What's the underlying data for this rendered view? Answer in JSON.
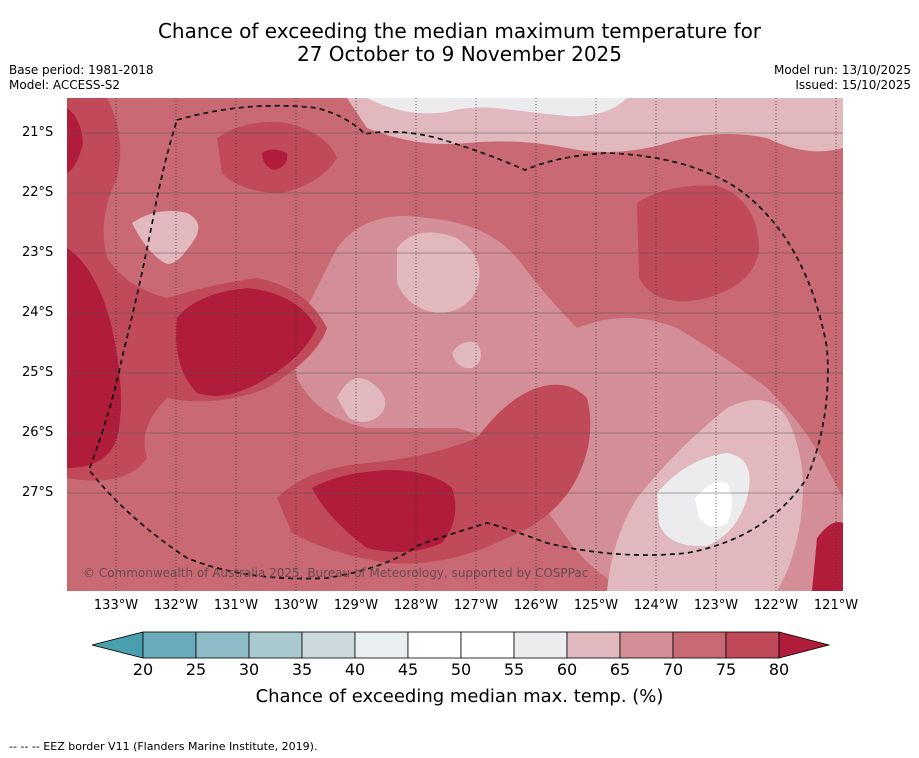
{
  "title": {
    "line1": "Chance of exceeding the median maximum temperature for",
    "line2": "27 October to 9 November 2025"
  },
  "meta": {
    "base_period": "Base period: 1981-2018",
    "model": "Model: ACCESS-S2",
    "model_run": "Model run: 13/10/2025",
    "issued": "Issued: 15/10/2025"
  },
  "map": {
    "credit": "© Commonwealth of Australia 2025, Bureau of Meteorology, supported by COSPPac",
    "lat_labels": [
      "21°S",
      "22°S",
      "23°S",
      "24°S",
      "25°S",
      "26°S",
      "27°S"
    ],
    "lon_labels": [
      "133°W",
      "132°W",
      "131°W",
      "130°W",
      "129°W",
      "128°W",
      "127°W",
      "126°W",
      "125°W",
      "124°W",
      "123°W",
      "122°W",
      "121°W"
    ]
  },
  "colorbar": {
    "ticks": [
      "20",
      "25",
      "30",
      "35",
      "40",
      "45",
      "50",
      "55",
      "60",
      "65",
      "70",
      "75",
      "80"
    ],
    "colors": [
      "#6aabbb",
      "#8dbcc6",
      "#a9c9ce",
      "#ccdade",
      "#e9eff1",
      "#ffffff",
      "#ffffff",
      "#ececee",
      "#e1b8bd",
      "#d48e97",
      "#c96973",
      "#c04a59"
    ],
    "under_color": "#4a9fae",
    "over_color": "#b11c3a",
    "label": "Chance of exceeding median max. temp. (%)"
  },
  "footer": {
    "legend": "--  --  -- EEZ border V11 (Flanders Marine Institute, 2019)."
  }
}
